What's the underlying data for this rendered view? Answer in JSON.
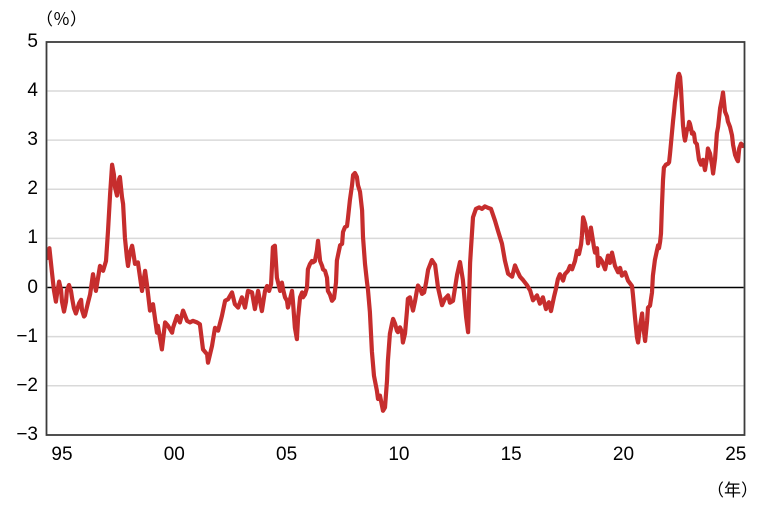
{
  "chart_data": {
    "type": "line",
    "title": "",
    "ylabel": "（％）",
    "xlabel": "（年）",
    "ylim": [
      -3,
      5
    ],
    "xlim": [
      1994.3,
      2025.45
    ],
    "grid": true,
    "zero_line": true,
    "legend": "none",
    "line_color": "#c62d2d",
    "grid_color": "#d9d9d9",
    "axis_color": "#3c3c3c",
    "zero_line_color": "#000000",
    "y_ticks": [
      5,
      4,
      3,
      2,
      1,
      0,
      -1,
      -2,
      -3
    ],
    "y_tick_labels": [
      "5",
      "4",
      "3",
      "2",
      "1",
      "0",
      "−1",
      "−2",
      "−3"
    ],
    "x_tick_years": [
      1995,
      2000,
      2005,
      2010,
      2015,
      2020,
      2025
    ],
    "x_tick_labels": [
      "95",
      "00",
      "05",
      "10",
      "15",
      "20",
      "25"
    ],
    "points": [
      [
        1994.35,
        0.6
      ],
      [
        1994.44,
        0.8
      ],
      [
        1994.55,
        0.32
      ],
      [
        1994.64,
        -0.05
      ],
      [
        1994.73,
        -0.29
      ],
      [
        1994.78,
        -0.12
      ],
      [
        1994.87,
        0.12
      ],
      [
        1994.96,
        -0.06
      ],
      [
        1995.0,
        -0.29
      ],
      [
        1995.09,
        -0.49
      ],
      [
        1995.18,
        -0.29
      ],
      [
        1995.22,
        -0.06
      ],
      [
        1995.31,
        0.05
      ],
      [
        1995.4,
        -0.07
      ],
      [
        1995.45,
        -0.22
      ],
      [
        1995.53,
        -0.42
      ],
      [
        1995.62,
        -0.53
      ],
      [
        1995.67,
        -0.46
      ],
      [
        1995.76,
        -0.32
      ],
      [
        1995.85,
        -0.25
      ],
      [
        1995.89,
        -0.46
      ],
      [
        1995.98,
        -0.59
      ],
      [
        1996.02,
        -0.57
      ],
      [
        1996.16,
        -0.3
      ],
      [
        1996.25,
        -0.14
      ],
      [
        1996.38,
        0.27
      ],
      [
        1996.51,
        -0.07
      ],
      [
        1996.69,
        0.44
      ],
      [
        1996.83,
        0.34
      ],
      [
        1996.96,
        0.54
      ],
      [
        1997.05,
        1.15
      ],
      [
        1997.14,
        1.9
      ],
      [
        1997.23,
        2.5
      ],
      [
        1997.31,
        2.3
      ],
      [
        1997.36,
        2.04
      ],
      [
        1997.45,
        1.87
      ],
      [
        1997.54,
        2.2
      ],
      [
        1997.58,
        2.25
      ],
      [
        1997.67,
        1.84
      ],
      [
        1997.72,
        1.7
      ],
      [
        1997.8,
        1.02
      ],
      [
        1997.89,
        0.61
      ],
      [
        1997.94,
        0.44
      ],
      [
        1998.03,
        0.72
      ],
      [
        1998.12,
        0.85
      ],
      [
        1998.16,
        0.75
      ],
      [
        1998.25,
        0.48
      ],
      [
        1998.38,
        0.51
      ],
      [
        1998.56,
        -0.07
      ],
      [
        1998.7,
        0.34
      ],
      [
        1998.78,
        0.07
      ],
      [
        1998.92,
        -0.47
      ],
      [
        1999.05,
        -0.34
      ],
      [
        1999.23,
        -0.92
      ],
      [
        1999.27,
        -0.78
      ],
      [
        1999.45,
        -1.26
      ],
      [
        1999.59,
        -0.71
      ],
      [
        1999.72,
        -0.78
      ],
      [
        1999.9,
        -0.92
      ],
      [
        1999.94,
        -0.82
      ],
      [
        2000.12,
        -0.58
      ],
      [
        2000.25,
        -0.71
      ],
      [
        2000.39,
        -0.47
      ],
      [
        2000.57,
        -0.68
      ],
      [
        2000.7,
        -0.71
      ],
      [
        2000.83,
        -0.68
      ],
      [
        2001.01,
        -0.71
      ],
      [
        2001.14,
        -0.75
      ],
      [
        2001.28,
        -1.26
      ],
      [
        2001.46,
        -1.36
      ],
      [
        2001.5,
        -1.53
      ],
      [
        2001.68,
        -1.19
      ],
      [
        2001.81,
        -0.82
      ],
      [
        2001.95,
        -0.88
      ],
      [
        2002.12,
        -0.58
      ],
      [
        2002.26,
        -0.27
      ],
      [
        2002.39,
        -0.24
      ],
      [
        2002.57,
        -0.1
      ],
      [
        2002.7,
        -0.34
      ],
      [
        2002.84,
        -0.41
      ],
      [
        2003.01,
        -0.2
      ],
      [
        2003.15,
        -0.41
      ],
      [
        2003.28,
        -0.07
      ],
      [
        2003.46,
        -0.1
      ],
      [
        2003.59,
        -0.44
      ],
      [
        2003.73,
        -0.07
      ],
      [
        2003.9,
        -0.48
      ],
      [
        2004.04,
        -0.07
      ],
      [
        2004.13,
        0.03
      ],
      [
        2004.22,
        -0.07
      ],
      [
        2004.31,
        0.07
      ],
      [
        2004.39,
        0.82
      ],
      [
        2004.48,
        0.85
      ],
      [
        2004.57,
        0.2
      ],
      [
        2004.62,
        0.1
      ],
      [
        2004.71,
        -0.07
      ],
      [
        2004.79,
        0.1
      ],
      [
        2004.84,
        -0.03
      ],
      [
        2004.93,
        -0.2
      ],
      [
        2005.02,
        -0.27
      ],
      [
        2005.06,
        -0.41
      ],
      [
        2005.15,
        -0.24
      ],
      [
        2005.24,
        -0.07
      ],
      [
        2005.28,
        -0.27
      ],
      [
        2005.37,
        -0.82
      ],
      [
        2005.46,
        -1.05
      ],
      [
        2005.51,
        -0.61
      ],
      [
        2005.6,
        -0.2
      ],
      [
        2005.69,
        -0.1
      ],
      [
        2005.73,
        -0.2
      ],
      [
        2005.82,
        -0.14
      ],
      [
        2005.91,
        0.0
      ],
      [
        2005.95,
        0.37
      ],
      [
        2006.04,
        0.48
      ],
      [
        2006.13,
        0.54
      ],
      [
        2006.17,
        0.51
      ],
      [
        2006.26,
        0.54
      ],
      [
        2006.35,
        0.75
      ],
      [
        2006.4,
        0.95
      ],
      [
        2006.49,
        0.54
      ],
      [
        2006.58,
        0.44
      ],
      [
        2006.62,
        0.37
      ],
      [
        2006.71,
        0.34
      ],
      [
        2006.8,
        0.2
      ],
      [
        2006.84,
        -0.07
      ],
      [
        2006.93,
        -0.14
      ],
      [
        2007.02,
        -0.27
      ],
      [
        2007.11,
        -0.22
      ],
      [
        2007.2,
        0.1
      ],
      [
        2007.24,
        0.55
      ],
      [
        2007.38,
        0.86
      ],
      [
        2007.47,
        0.89
      ],
      [
        2007.51,
        1.13
      ],
      [
        2007.6,
        1.23
      ],
      [
        2007.69,
        1.25
      ],
      [
        2007.73,
        1.4
      ],
      [
        2007.82,
        1.78
      ],
      [
        2007.91,
        2.08
      ],
      [
        2007.96,
        2.29
      ],
      [
        2008.04,
        2.33
      ],
      [
        2008.13,
        2.25
      ],
      [
        2008.18,
        2.08
      ],
      [
        2008.27,
        1.95
      ],
      [
        2008.36,
        1.57
      ],
      [
        2008.4,
        1.03
      ],
      [
        2008.49,
        0.48
      ],
      [
        2008.58,
        0.11
      ],
      [
        2008.62,
        -0.03
      ],
      [
        2008.71,
        -0.5
      ],
      [
        2008.8,
        -1.3
      ],
      [
        2008.89,
        -1.8
      ],
      [
        2009.02,
        -2.1
      ],
      [
        2009.07,
        -2.27
      ],
      [
        2009.16,
        -2.2
      ],
      [
        2009.29,
        -2.51
      ],
      [
        2009.38,
        -2.44
      ],
      [
        2009.47,
        -1.9
      ],
      [
        2009.51,
        -1.49
      ],
      [
        2009.6,
        -0.94
      ],
      [
        2009.69,
        -0.74
      ],
      [
        2009.74,
        -0.64
      ],
      [
        2009.83,
        -0.74
      ],
      [
        2009.91,
        -0.88
      ],
      [
        2009.96,
        -0.91
      ],
      [
        2010.05,
        -0.81
      ],
      [
        2010.14,
        -0.91
      ],
      [
        2010.18,
        -1.12
      ],
      [
        2010.27,
        -0.94
      ],
      [
        2010.36,
        -0.47
      ],
      [
        2010.4,
        -0.23
      ],
      [
        2010.49,
        -0.2
      ],
      [
        2010.58,
        -0.37
      ],
      [
        2010.63,
        -0.47
      ],
      [
        2010.72,
        -0.27
      ],
      [
        2010.8,
        -0.06
      ],
      [
        2010.85,
        0.04
      ],
      [
        2010.94,
        -0.02
      ],
      [
        2011.03,
        -0.13
      ],
      [
        2011.12,
        -0.1
      ],
      [
        2011.21,
        0.1
      ],
      [
        2011.3,
        0.36
      ],
      [
        2011.47,
        0.56
      ],
      [
        2011.61,
        0.46
      ],
      [
        2011.74,
        0.0
      ],
      [
        2011.92,
        -0.36
      ],
      [
        2012.05,
        -0.23
      ],
      [
        2012.19,
        -0.16
      ],
      [
        2012.27,
        -0.31
      ],
      [
        2012.41,
        -0.27
      ],
      [
        2012.59,
        0.26
      ],
      [
        2012.72,
        0.52
      ],
      [
        2012.85,
        0.15
      ],
      [
        2012.99,
        -0.6
      ],
      [
        2013.08,
        -0.91
      ],
      [
        2013.17,
        0.5
      ],
      [
        2013.21,
        0.8
      ],
      [
        2013.3,
        1.43
      ],
      [
        2013.43,
        1.6
      ],
      [
        2013.57,
        1.63
      ],
      [
        2013.7,
        1.6
      ],
      [
        2013.83,
        1.65
      ],
      [
        2013.97,
        1.62
      ],
      [
        2014.1,
        1.6
      ],
      [
        2014.28,
        1.36
      ],
      [
        2014.41,
        1.16
      ],
      [
        2014.59,
        0.89
      ],
      [
        2014.72,
        0.55
      ],
      [
        2014.86,
        0.28
      ],
      [
        2015.04,
        0.22
      ],
      [
        2015.17,
        0.45
      ],
      [
        2015.26,
        0.35
      ],
      [
        2015.39,
        0.22
      ],
      [
        2015.53,
        0.15
      ],
      [
        2015.7,
        0.05
      ],
      [
        2015.84,
        -0.06
      ],
      [
        2015.97,
        -0.26
      ],
      [
        2016.15,
        -0.16
      ],
      [
        2016.28,
        -0.33
      ],
      [
        2016.41,
        -0.2
      ],
      [
        2016.55,
        -0.44
      ],
      [
        2016.68,
        -0.3
      ],
      [
        2016.77,
        -0.48
      ],
      [
        2016.9,
        -0.2
      ],
      [
        2016.99,
        -0.03
      ],
      [
        2017.08,
        0.17
      ],
      [
        2017.17,
        0.27
      ],
      [
        2017.31,
        0.14
      ],
      [
        2017.39,
        0.27
      ],
      [
        2017.53,
        0.34
      ],
      [
        2017.62,
        0.44
      ],
      [
        2017.71,
        0.37
      ],
      [
        2017.84,
        0.54
      ],
      [
        2017.93,
        0.75
      ],
      [
        2018.02,
        0.68
      ],
      [
        2018.11,
        0.88
      ],
      [
        2018.15,
        1.05
      ],
      [
        2018.2,
        1.43
      ],
      [
        2018.29,
        1.3
      ],
      [
        2018.38,
        1.05
      ],
      [
        2018.42,
        0.9
      ],
      [
        2018.51,
        1.1
      ],
      [
        2018.55,
        1.22
      ],
      [
        2018.64,
        0.95
      ],
      [
        2018.69,
        0.8
      ],
      [
        2018.73,
        0.71
      ],
      [
        2018.82,
        0.8
      ],
      [
        2018.87,
        0.44
      ],
      [
        2018.95,
        0.6
      ],
      [
        2019.04,
        0.54
      ],
      [
        2019.18,
        0.37
      ],
      [
        2019.31,
        0.65
      ],
      [
        2019.4,
        0.5
      ],
      [
        2019.49,
        0.71
      ],
      [
        2019.62,
        0.44
      ],
      [
        2019.76,
        0.31
      ],
      [
        2019.85,
        0.4
      ],
      [
        2019.93,
        0.24
      ],
      [
        2020.07,
        0.31
      ],
      [
        2020.2,
        0.14
      ],
      [
        2020.38,
        0.03
      ],
      [
        2020.42,
        -0.14
      ],
      [
        2020.51,
        -0.61
      ],
      [
        2020.6,
        -1.02
      ],
      [
        2020.65,
        -1.12
      ],
      [
        2020.74,
        -0.78
      ],
      [
        2020.83,
        -0.53
      ],
      [
        2020.87,
        -0.75
      ],
      [
        2020.96,
        -1.09
      ],
      [
        2021.05,
        -0.68
      ],
      [
        2021.09,
        -0.41
      ],
      [
        2021.18,
        -0.37
      ],
      [
        2021.27,
        -0.1
      ],
      [
        2021.31,
        0.24
      ],
      [
        2021.4,
        0.56
      ],
      [
        2021.49,
        0.76
      ],
      [
        2021.54,
        0.86
      ],
      [
        2021.58,
        0.8
      ],
      [
        2021.63,
        0.93
      ],
      [
        2021.67,
        1.1
      ],
      [
        2021.71,
        1.64
      ],
      [
        2021.76,
        2.18
      ],
      [
        2021.8,
        2.44
      ],
      [
        2021.89,
        2.5
      ],
      [
        2021.98,
        2.52
      ],
      [
        2022.03,
        2.55
      ],
      [
        2022.07,
        2.72
      ],
      [
        2022.12,
        2.96
      ],
      [
        2022.16,
        3.16
      ],
      [
        2022.21,
        3.4
      ],
      [
        2022.25,
        3.57
      ],
      [
        2022.29,
        3.77
      ],
      [
        2022.34,
        3.94
      ],
      [
        2022.38,
        4.14
      ],
      [
        2022.43,
        4.31
      ],
      [
        2022.47,
        4.35
      ],
      [
        2022.52,
        4.28
      ],
      [
        2022.56,
        4.04
      ],
      [
        2022.61,
        3.63
      ],
      [
        2022.65,
        3.3
      ],
      [
        2022.7,
        3.09
      ],
      [
        2022.74,
        2.99
      ],
      [
        2022.78,
        3.09
      ],
      [
        2022.83,
        3.23
      ],
      [
        2022.87,
        3.22
      ],
      [
        2022.92,
        3.37
      ],
      [
        2022.96,
        3.33
      ],
      [
        2023.01,
        3.23
      ],
      [
        2023.05,
        3.13
      ],
      [
        2023.1,
        3.16
      ],
      [
        2023.14,
        3.13
      ],
      [
        2023.19,
        2.96
      ],
      [
        2023.27,
        2.92
      ],
      [
        2023.36,
        2.6
      ],
      [
        2023.45,
        2.5
      ],
      [
        2023.54,
        2.6
      ],
      [
        2023.63,
        2.39
      ],
      [
        2023.72,
        2.66
      ],
      [
        2023.76,
        2.83
      ],
      [
        2023.85,
        2.73
      ],
      [
        2023.94,
        2.5
      ],
      [
        2023.99,
        2.32
      ],
      [
        2024.08,
        2.63
      ],
      [
        2024.16,
        3.14
      ],
      [
        2024.21,
        3.27
      ],
      [
        2024.3,
        3.65
      ],
      [
        2024.39,
        3.85
      ],
      [
        2024.43,
        3.97
      ],
      [
        2024.52,
        3.58
      ],
      [
        2024.61,
        3.48
      ],
      [
        2024.65,
        3.38
      ],
      [
        2024.74,
        3.27
      ],
      [
        2024.83,
        3.1
      ],
      [
        2024.88,
        2.9
      ],
      [
        2024.97,
        2.7
      ],
      [
        2025.06,
        2.6
      ],
      [
        2025.1,
        2.57
      ],
      [
        2025.15,
        2.83
      ],
      [
        2025.23,
        2.93
      ],
      [
        2025.32,
        2.88
      ],
      [
        2025.39,
        2.9
      ]
    ]
  }
}
